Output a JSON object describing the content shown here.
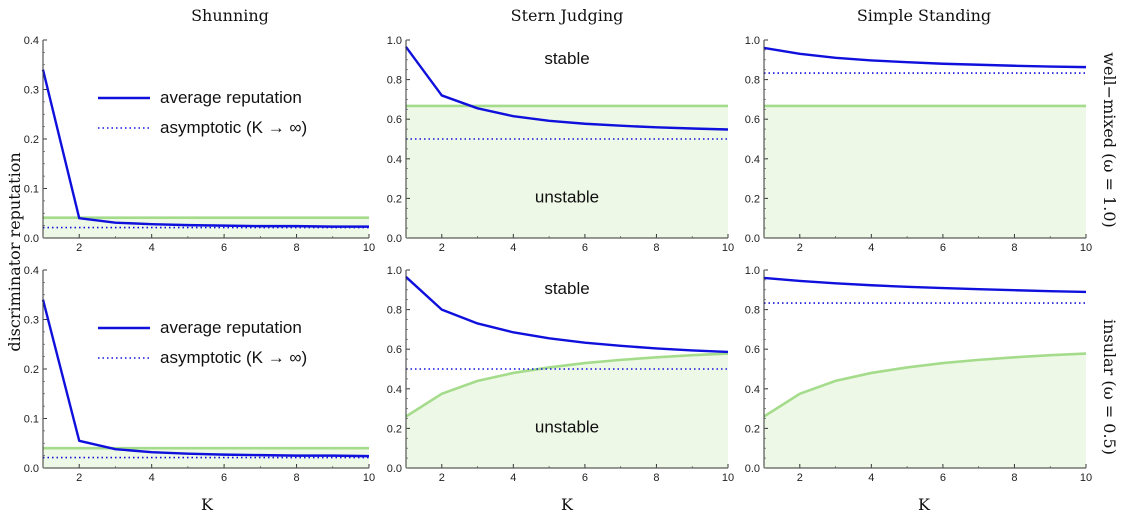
{
  "columns": [
    "Shunning",
    "Stern Judging",
    "Simple Standing"
  ],
  "rows": [
    "well−mixed (ω = 1.0)",
    "insular (ω = 0.5)"
  ],
  "ylabel": "discriminator reputation",
  "xlabel": "K",
  "legend": {
    "average": "average reputation",
    "asymptotic": "asymptotic (K → ∞)"
  },
  "regions": {
    "stable": "stable",
    "unstable": "unstable"
  },
  "colors": {
    "average": "#1010dd",
    "asymptotic": "#1010dd",
    "threshold": "#a5dc8c",
    "fill": "#eef8e6"
  },
  "chart_data": [
    {
      "type": "line",
      "title": "Shunning",
      "row": "well−mixed (ω = 1.0)",
      "xlim": [
        1,
        10
      ],
      "ylim": [
        0,
        0.4
      ],
      "xticks": [
        2,
        4,
        6,
        8,
        10
      ],
      "yticks": [
        0.0,
        0.1,
        0.2,
        0.3,
        0.4
      ],
      "x": [
        1,
        2,
        3,
        4,
        5,
        6,
        7,
        8,
        9,
        10
      ],
      "series": [
        {
          "name": "average reputation",
          "values": [
            0.34,
            0.04,
            0.031,
            0.028,
            0.026,
            0.025,
            0.024,
            0.024,
            0.023,
            0.023
          ]
        },
        {
          "name": "asymptotic (K → ∞)",
          "values": [
            0.021,
            0.021,
            0.021,
            0.021,
            0.021,
            0.021,
            0.021,
            0.021,
            0.021,
            0.021
          ]
        },
        {
          "name": "threshold",
          "values": [
            0.041,
            0.041,
            0.041,
            0.041,
            0.041,
            0.041,
            0.041,
            0.041,
            0.041,
            0.041
          ]
        }
      ],
      "legend_shown": true
    },
    {
      "type": "line",
      "title": "Stern Judging",
      "row": "well−mixed (ω = 1.0)",
      "xlim": [
        1,
        10
      ],
      "ylim": [
        0,
        1.0
      ],
      "xticks": [
        2,
        4,
        6,
        8,
        10
      ],
      "yticks": [
        0.0,
        0.2,
        0.4,
        0.6,
        0.8,
        1.0
      ],
      "x": [
        1,
        2,
        3,
        4,
        5,
        6,
        7,
        8,
        9,
        10
      ],
      "series": [
        {
          "name": "average reputation",
          "values": [
            0.965,
            0.72,
            0.655,
            0.615,
            0.592,
            0.577,
            0.567,
            0.559,
            0.553,
            0.548
          ]
        },
        {
          "name": "asymptotic (K → ∞)",
          "values": [
            0.5,
            0.5,
            0.5,
            0.5,
            0.5,
            0.5,
            0.5,
            0.5,
            0.5,
            0.5
          ]
        },
        {
          "name": "threshold",
          "values": [
            0.667,
            0.667,
            0.667,
            0.667,
            0.667,
            0.667,
            0.667,
            0.667,
            0.667,
            0.667
          ]
        }
      ],
      "annotations": [
        "stable",
        "unstable"
      ]
    },
    {
      "type": "line",
      "title": "Simple Standing",
      "row": "well−mixed (ω = 1.0)",
      "xlim": [
        1,
        10
      ],
      "ylim": [
        0,
        1.0
      ],
      "xticks": [
        2,
        4,
        6,
        8,
        10
      ],
      "yticks": [
        0.0,
        0.2,
        0.4,
        0.6,
        0.8,
        1.0
      ],
      "x": [
        1,
        2,
        3,
        4,
        5,
        6,
        7,
        8,
        9,
        10
      ],
      "series": [
        {
          "name": "average reputation",
          "values": [
            0.96,
            0.93,
            0.91,
            0.897,
            0.888,
            0.88,
            0.875,
            0.87,
            0.866,
            0.863
          ]
        },
        {
          "name": "asymptotic (K → ∞)",
          "values": [
            0.833,
            0.833,
            0.833,
            0.833,
            0.833,
            0.833,
            0.833,
            0.833,
            0.833,
            0.833
          ]
        },
        {
          "name": "threshold",
          "values": [
            0.667,
            0.667,
            0.667,
            0.667,
            0.667,
            0.667,
            0.667,
            0.667,
            0.667,
            0.667
          ]
        }
      ]
    },
    {
      "type": "line",
      "title": "Shunning",
      "row": "insular (ω = 0.5)",
      "xlim": [
        1,
        10
      ],
      "ylim": [
        0,
        0.4
      ],
      "xticks": [
        2,
        4,
        6,
        8,
        10
      ],
      "yticks": [
        0.0,
        0.1,
        0.2,
        0.3,
        0.4
      ],
      "x": [
        1,
        2,
        3,
        4,
        5,
        6,
        7,
        8,
        9,
        10
      ],
      "series": [
        {
          "name": "average reputation",
          "values": [
            0.34,
            0.055,
            0.038,
            0.032,
            0.029,
            0.027,
            0.026,
            0.025,
            0.025,
            0.024
          ]
        },
        {
          "name": "asymptotic (K → ∞)",
          "values": [
            0.021,
            0.021,
            0.021,
            0.021,
            0.021,
            0.021,
            0.021,
            0.021,
            0.021,
            0.021
          ]
        },
        {
          "name": "threshold",
          "values": [
            0.04,
            0.04,
            0.04,
            0.04,
            0.04,
            0.04,
            0.04,
            0.04,
            0.04,
            0.04
          ]
        }
      ],
      "legend_shown": true
    },
    {
      "type": "line",
      "title": "Stern Judging",
      "row": "insular (ω = 0.5)",
      "xlim": [
        1,
        10
      ],
      "ylim": [
        0,
        1.0
      ],
      "xticks": [
        2,
        4,
        6,
        8,
        10
      ],
      "yticks": [
        0.0,
        0.2,
        0.4,
        0.6,
        0.8,
        1.0
      ],
      "x": [
        1,
        2,
        3,
        4,
        5,
        6,
        7,
        8,
        9,
        10
      ],
      "series": [
        {
          "name": "average reputation",
          "values": [
            0.965,
            0.8,
            0.73,
            0.685,
            0.655,
            0.633,
            0.617,
            0.604,
            0.594,
            0.586
          ]
        },
        {
          "name": "asymptotic (K → ∞)",
          "values": [
            0.5,
            0.5,
            0.5,
            0.5,
            0.5,
            0.5,
            0.5,
            0.5,
            0.5,
            0.5
          ]
        },
        {
          "name": "threshold",
          "values": [
            0.26,
            0.375,
            0.44,
            0.48,
            0.508,
            0.53,
            0.546,
            0.559,
            0.57,
            0.578
          ]
        }
      ],
      "annotations": [
        "stable",
        "unstable"
      ]
    },
    {
      "type": "line",
      "title": "Simple Standing",
      "row": "insular (ω = 0.5)",
      "xlim": [
        1,
        10
      ],
      "ylim": [
        0,
        1.0
      ],
      "xticks": [
        2,
        4,
        6,
        8,
        10
      ],
      "yticks": [
        0.0,
        0.2,
        0.4,
        0.6,
        0.8,
        1.0
      ],
      "x": [
        1,
        2,
        3,
        4,
        5,
        6,
        7,
        8,
        9,
        10
      ],
      "series": [
        {
          "name": "average reputation",
          "values": [
            0.96,
            0.945,
            0.933,
            0.923,
            0.915,
            0.909,
            0.903,
            0.898,
            0.893,
            0.889
          ]
        },
        {
          "name": "asymptotic (K → ∞)",
          "values": [
            0.833,
            0.833,
            0.833,
            0.833,
            0.833,
            0.833,
            0.833,
            0.833,
            0.833,
            0.833
          ]
        },
        {
          "name": "threshold",
          "values": [
            0.26,
            0.375,
            0.44,
            0.48,
            0.508,
            0.53,
            0.546,
            0.559,
            0.57,
            0.578
          ]
        }
      ]
    }
  ]
}
